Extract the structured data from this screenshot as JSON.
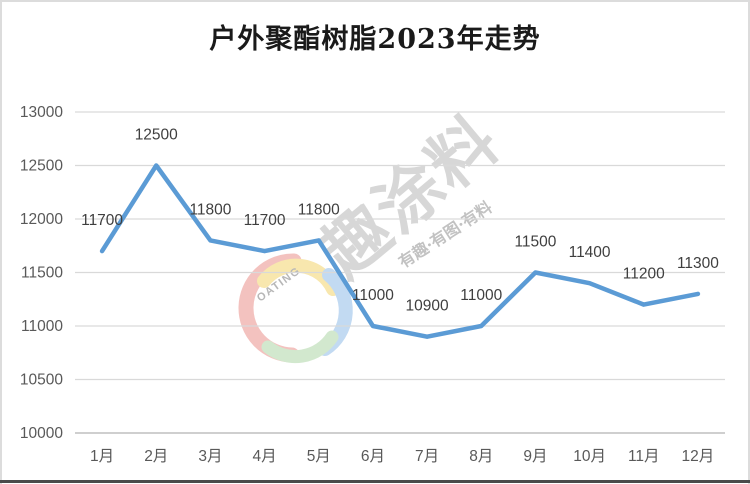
{
  "watermark": {
    "brand": "趣涂料",
    "slogan": "有趣·有图·有料",
    "logo_text": "OATING"
  },
  "colors": {
    "line": "#5B9BD5",
    "gridline": "#D9D9D9",
    "axis_line": "#BFBFBF",
    "tick_label": "#595959",
    "data_label": "#3F3F3F",
    "title": "#1A1A1A",
    "frame_border": "#DCDCDC",
    "bottom_rule": "#4A4A4A",
    "watermark_gray": "#6E6E6E",
    "logo_colors": [
      "#F2B8B5",
      "#F7E3A1",
      "#B8D4F0",
      "#CBE5C6"
    ]
  },
  "chart_data": {
    "type": "line",
    "title": "户外聚酯树脂2023年走势",
    "categories": [
      "1月",
      "2月",
      "3月",
      "4月",
      "5月",
      "6月",
      "7月",
      "8月",
      "9月",
      "10月",
      "11月",
      "12月"
    ],
    "values": [
      11700,
      12500,
      11800,
      11700,
      11800,
      11000,
      10900,
      11000,
      11500,
      11400,
      11200,
      11300
    ],
    "xlabel": "",
    "ylabel": "",
    "ylim": [
      10000,
      13000
    ],
    "yticks": [
      10000,
      10500,
      11000,
      11500,
      12000,
      12500,
      13000
    ],
    "grid": true,
    "legend": false,
    "data_labels": "above",
    "line_color": "#5B9BD5"
  }
}
